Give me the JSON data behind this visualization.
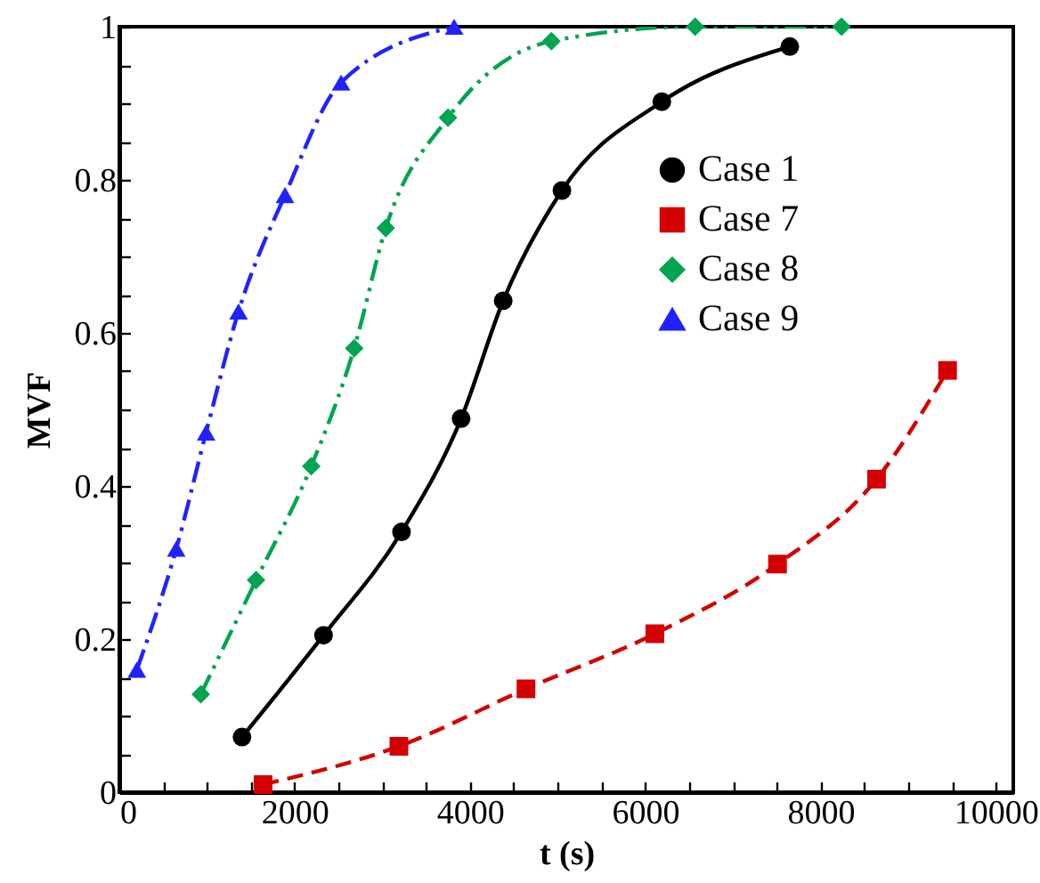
{
  "chart_data": {
    "type": "line",
    "xlabel": "t (s)",
    "ylabel": "MVF",
    "xlim": [
      0,
      10200
    ],
    "ylim": [
      0,
      1
    ],
    "xticks": [
      0,
      {
        "value": 500,
        "label": null
      },
      {
        "value": 1000,
        "label": null
      },
      {
        "value": 1500,
        "label": null
      },
      2000,
      {
        "value": 2500,
        "label": null
      },
      {
        "value": 3000,
        "label": null
      },
      {
        "value": 3500,
        "label": null
      },
      4000,
      {
        "value": 4500,
        "label": null
      },
      {
        "value": 5000,
        "label": null
      },
      {
        "value": 5500,
        "label": null
      },
      6000,
      {
        "value": 6500,
        "label": null
      },
      {
        "value": 7000,
        "label": null
      },
      {
        "value": 7500,
        "label": null
      },
      8000,
      {
        "value": 8500,
        "label": null
      },
      {
        "value": 9000,
        "label": null
      },
      {
        "value": 9500,
        "label": null
      },
      10000
    ],
    "yticks": [
      0,
      {
        "value": 0.05,
        "label": null
      },
      {
        "value": 0.1,
        "label": null
      },
      {
        "value": 0.15,
        "label": null
      },
      0.2,
      {
        "value": 0.25,
        "label": null
      },
      {
        "value": 0.3,
        "label": null
      },
      {
        "value": 0.35,
        "label": null
      },
      0.4,
      {
        "value": 0.45,
        "label": null
      },
      {
        "value": 0.5,
        "label": null
      },
      {
        "value": 0.55,
        "label": null
      },
      0.6,
      {
        "value": 0.65,
        "label": null
      },
      {
        "value": 0.7,
        "label": null
      },
      {
        "value": 0.75,
        "label": null
      },
      0.8,
      {
        "value": 0.85,
        "label": null
      },
      {
        "value": 0.9,
        "label": null
      },
      {
        "value": 0.95,
        "label": null
      },
      1
    ],
    "grid": false,
    "legend": "top right",
    "series": [
      {
        "name": "Case 1",
        "color": "#000000",
        "marker": "circle",
        "line_style": "solid",
        "x": [
          1400,
          2330,
          3220,
          3900,
          4380,
          5050,
          6190,
          7650
        ],
        "values": [
          0.072,
          0.205,
          0.34,
          0.488,
          0.642,
          0.786,
          0.902,
          0.974
        ]
      },
      {
        "name": "Case 7",
        "color": "#d40000",
        "marker": "square",
        "line_style": "dashed",
        "x": [
          1640,
          3190,
          4640,
          6110,
          7510,
          8640,
          9450
        ],
        "values": [
          0.01,
          0.06,
          0.135,
          0.207,
          0.298,
          0.409,
          0.551
        ]
      },
      {
        "name": "Case 8",
        "color": "#00a550",
        "marker": "diamond",
        "line_style": "dashed",
        "x": [
          930,
          1560,
          2190,
          2680,
          3040,
          3750,
          4930,
          6570,
          8240
        ],
        "values": [
          0.128,
          0.277,
          0.426,
          0.58,
          0.737,
          0.881,
          0.981,
          1.0,
          1.0
        ]
      },
      {
        "name": "Case 9",
        "color": "#2222ff",
        "marker": "triangle",
        "line_style": "dashed",
        "x": [
          200,
          650,
          990,
          1360,
          1890,
          2530,
          3820
        ],
        "values": [
          0.16,
          0.318,
          0.47,
          0.628,
          0.78,
          0.927,
          1.0
        ]
      }
    ]
  }
}
